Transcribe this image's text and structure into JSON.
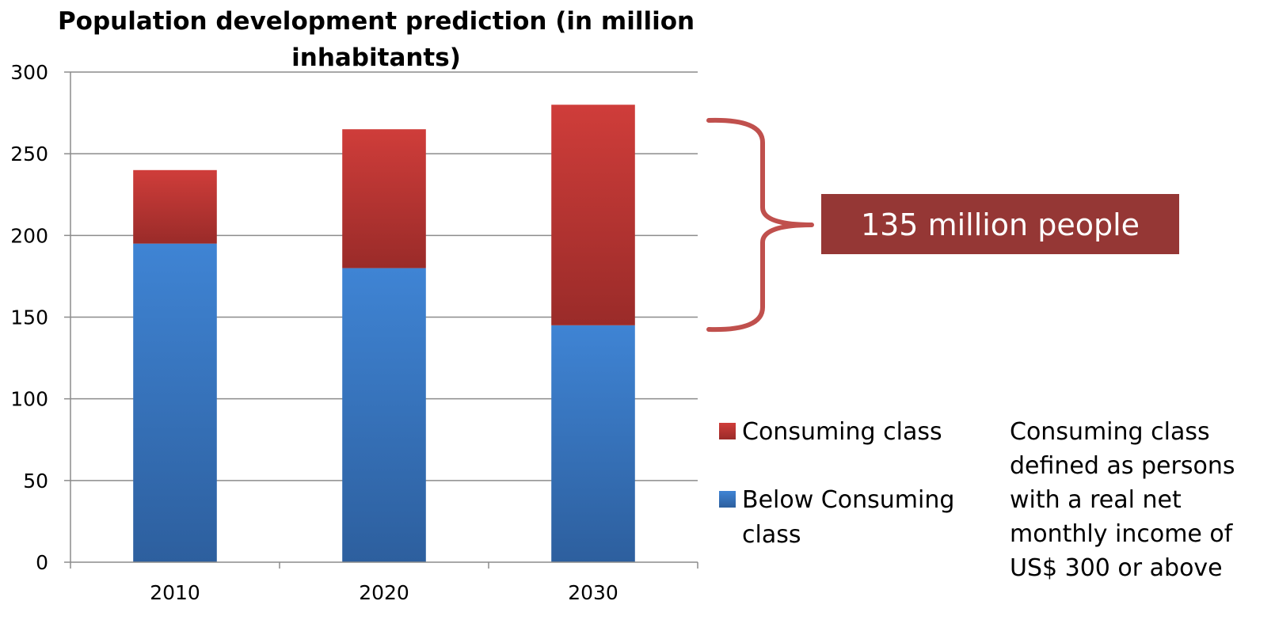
{
  "chart_data": {
    "type": "bar",
    "stacked": true,
    "title": "Population development prediction (in million inhabitants)",
    "title_lines": [
      "Population development prediction (in million",
      "inhabitants)"
    ],
    "categories": [
      "2010",
      "2020",
      "2030"
    ],
    "series": [
      {
        "name": "Below Consuming class",
        "values": [
          195,
          180,
          145
        ],
        "color": "#3b7ccc"
      },
      {
        "name": "Consuming class",
        "values": [
          45,
          85,
          135
        ],
        "color": "#c73a37"
      }
    ],
    "ylim": [
      0,
      300
    ],
    "yticks": [
      0,
      50,
      100,
      150,
      200,
      250,
      300
    ],
    "grid": true,
    "legend_position": "right",
    "legend": [
      {
        "lines": [
          "Consuming class"
        ],
        "color": "#c73a37"
      },
      {
        "lines": [
          "Below Consuming",
          "class"
        ],
        "color": "#3b7ccc"
      }
    ]
  },
  "callout": {
    "text": "135 million people",
    "bg_color": "#953735",
    "brace_color": "#c0504d"
  },
  "note": {
    "lines": [
      "Consuming class",
      "defined as persons",
      "with a real net",
      "monthly income of",
      "US$ 300 or above"
    ]
  }
}
